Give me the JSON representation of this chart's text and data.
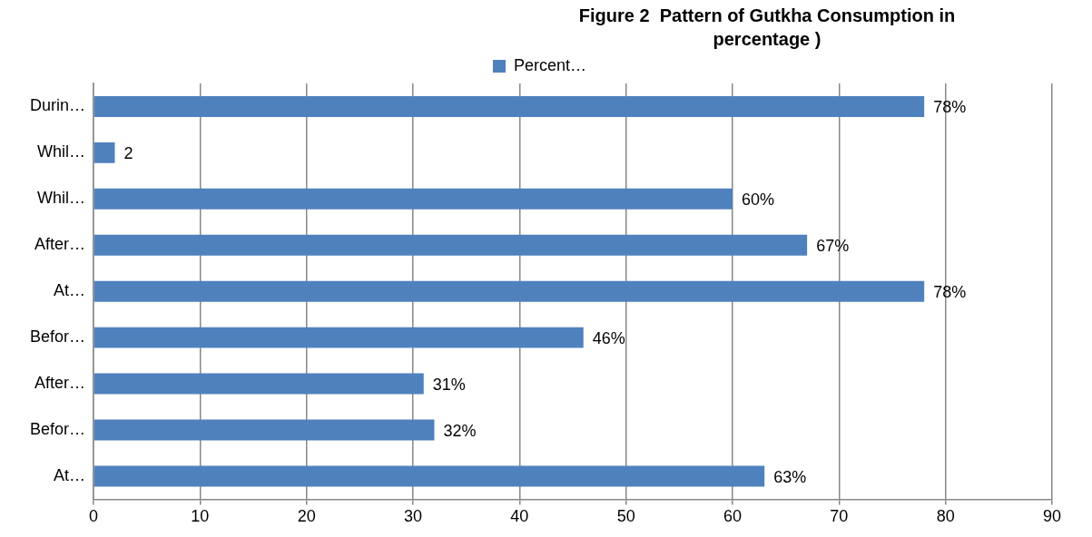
{
  "chart_data": {
    "type": "bar",
    "orientation": "horizontal",
    "title": "Figure 2  Pattern of Gutkha Consumption in percentage )",
    "categories": [
      "Durin…",
      "Whil…",
      "Whil…",
      "After…",
      "At…",
      "Befor…",
      "After…",
      "Befor…",
      "At…"
    ],
    "series": [
      {
        "name": "Percent…",
        "color": "#4f81bd",
        "values": [
          78,
          2,
          60,
          67,
          78,
          46,
          31,
          32,
          63
        ],
        "value_labels": [
          "78%",
          "2",
          "60%",
          "67%",
          "78%",
          "46%",
          "31%",
          "32%",
          "63%"
        ]
      }
    ],
    "xlim": [
      0,
      90
    ],
    "xticks": [
      0,
      10,
      20,
      30,
      40,
      50,
      60,
      70,
      80,
      90
    ],
    "grid": "x",
    "legend": "top"
  }
}
